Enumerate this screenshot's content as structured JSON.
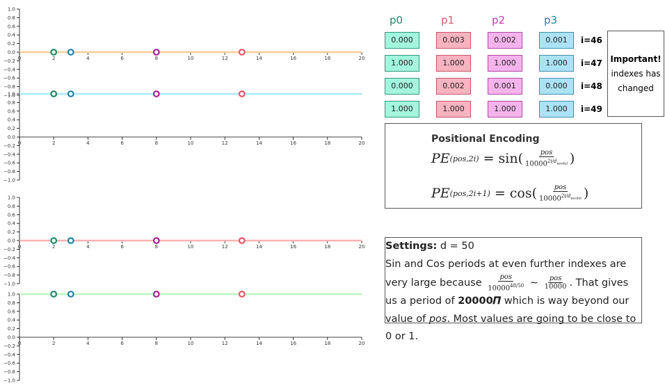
{
  "chart_data": [
    {
      "type": "scatter",
      "subplot": 1,
      "line_color": "#f8cd94",
      "line_value": 0.0,
      "xlim": [
        0,
        20
      ],
      "ylim": [
        -1,
        1
      ],
      "points": [
        {
          "x": 2,
          "y": 0,
          "color": "#1d8a66"
        },
        {
          "x": 3,
          "y": 0,
          "color": "#1f84a6"
        },
        {
          "x": 8,
          "y": 0,
          "color": "#a61f94"
        },
        {
          "x": 13,
          "y": 0,
          "color": "#e85465"
        }
      ]
    },
    {
      "type": "scatter",
      "subplot": 2,
      "line_color": "#a9ecf7",
      "line_value": 1.0,
      "xlim": [
        0,
        20
      ],
      "ylim": [
        -1,
        1
      ],
      "points": [
        {
          "x": 2,
          "y": 1,
          "color": "#1d8a66"
        },
        {
          "x": 3,
          "y": 1,
          "color": "#1f84a6"
        },
        {
          "x": 8,
          "y": 1,
          "color": "#a61f94"
        },
        {
          "x": 13,
          "y": 1,
          "color": "#e85465"
        }
      ]
    },
    {
      "type": "scatter",
      "subplot": 3,
      "line_color": "#f7b2b2",
      "line_value": 0.0,
      "xlim": [
        0,
        20
      ],
      "ylim": [
        -1,
        1
      ],
      "points": [
        {
          "x": 2,
          "y": 0,
          "color": "#1d8a66"
        },
        {
          "x": 3,
          "y": 0,
          "color": "#1f84a6"
        },
        {
          "x": 8,
          "y": 0,
          "color": "#a61f94"
        },
        {
          "x": 13,
          "y": 0,
          "color": "#e85465"
        }
      ]
    },
    {
      "type": "scatter",
      "subplot": 4,
      "line_color": "#bff5bf",
      "line_value": 1.0,
      "xlim": [
        0,
        20
      ],
      "ylim": [
        -1,
        1
      ],
      "points": [
        {
          "x": 2,
          "y": 1,
          "color": "#1d8a66"
        },
        {
          "x": 3,
          "y": 1,
          "color": "#1f84a6"
        },
        {
          "x": 8,
          "y": 1,
          "color": "#a61f94"
        },
        {
          "x": 13,
          "y": 1,
          "color": "#e85465"
        }
      ]
    }
  ],
  "axis": {
    "x_ticks": [
      "0",
      "2",
      "4",
      "6",
      "8",
      "10",
      "12",
      "14",
      "16",
      "18",
      "20"
    ],
    "y_ticks": [
      "1.0",
      "0.8",
      "0.6",
      "0.4",
      "0.2",
      "0.0",
      "−0.2",
      "−0.4",
      "−0.6",
      "−0.8",
      "−1.0"
    ]
  },
  "table": {
    "headers": [
      {
        "label": "p0",
        "color": "#1d8a66"
      },
      {
        "label": "p1",
        "color": "#e8546e"
      },
      {
        "label": "p2",
        "color": "#c23aa8"
      },
      {
        "label": "p3",
        "color": "#1f84a6"
      }
    ],
    "rows": [
      {
        "index_label": "i=46",
        "values": [
          "0.000",
          "0.003",
          "0.002",
          "0.001"
        ]
      },
      {
        "index_label": "i=47",
        "values": [
          "1.000",
          "1.000",
          "1.000",
          "1.000"
        ]
      },
      {
        "index_label": "i=48",
        "values": [
          "0.000",
          "0.002",
          "0.001",
          "0.000"
        ]
      },
      {
        "index_label": "i=49",
        "values": [
          "1.000",
          "1.000",
          "1.000",
          "1.000"
        ]
      }
    ]
  },
  "note": {
    "title": "Important!",
    "line1": "indexes has",
    "line2": "changed"
  },
  "pe": {
    "title": "Positional Encoding",
    "f1_lhs": "PE",
    "f1_sub": "(pos,2i)",
    "f1_eq": " = sin(",
    "f1_num": "pos",
    "f1_den": "10000",
    "f1_exp": "2i/d",
    "f1_exp_sub": "model",
    "f1_close": ")",
    "f2_lhs": "PE",
    "f2_sub": "(pos,2i+1)",
    "f2_eq": " = cos(",
    "f2_num": "pos",
    "f2_den": "10000",
    "f2_exp": "2i/d",
    "f2_exp_sub": "model",
    "f2_close": ")"
  },
  "settings": {
    "label": "Settings:",
    "value": " d = 50",
    "t1": "Sin and Cos periods at even further indexes are very large because ",
    "frac1_num": "pos",
    "frac1_den": "10000",
    "frac1_exp": "48/50",
    "sim": " ∼ ",
    "frac2_num": "pos",
    "frac2_den": "10000",
    "t2": ". That gives us a period of ",
    "bold": "20000𝜫",
    "t3": " which is way beyond our value of ",
    "ital": "pos",
    "t4": ". Most values are going to be close to 0 or 1."
  }
}
